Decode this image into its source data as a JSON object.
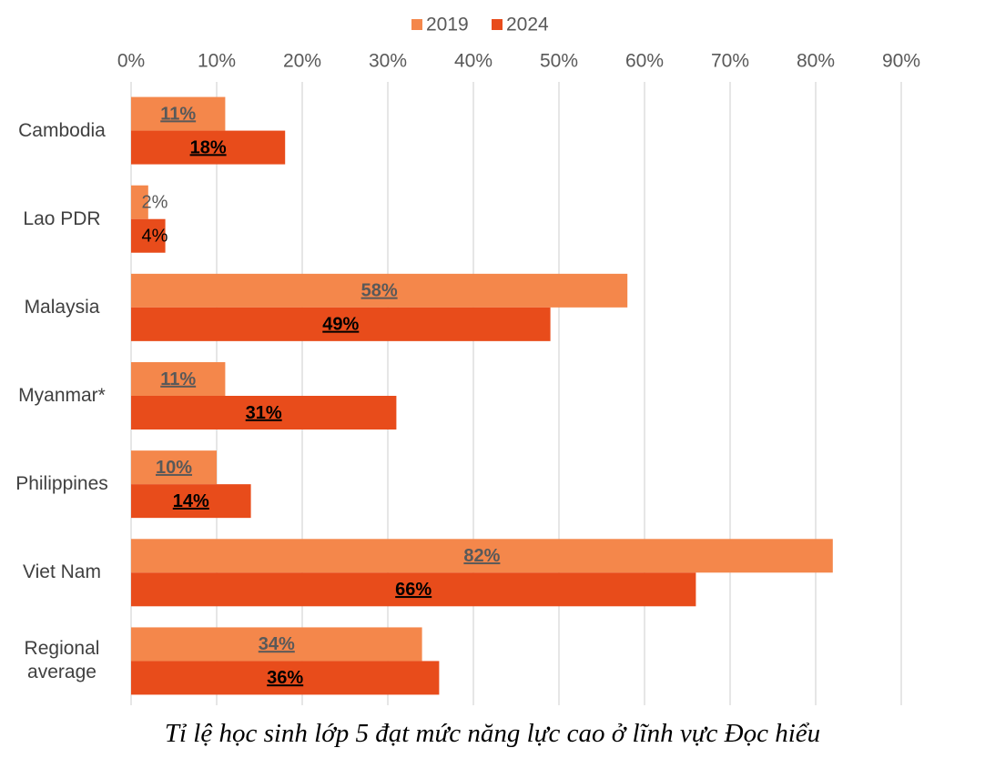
{
  "chart_data": {
    "type": "hbar",
    "categories": [
      "Cambodia",
      "Lao PDR",
      "Malaysia",
      "Myanmar*",
      "Philippines",
      "Viet Nam",
      "Regional average"
    ],
    "series": [
      {
        "name": "2019",
        "color": "#f4874b",
        "values": [
          11,
          2,
          58,
          11,
          10,
          82,
          34
        ],
        "value_labels": [
          "11%",
          "2%",
          "58%",
          "11%",
          "10%",
          "82%",
          "34%"
        ]
      },
      {
        "name": "2024",
        "color": "#e84c1b",
        "values": [
          18,
          4,
          49,
          31,
          14,
          66,
          36
        ],
        "value_labels": [
          "18%",
          "4%",
          "49%",
          "31%",
          "14%",
          "66%",
          "36%"
        ]
      }
    ],
    "xlim": [
      0,
      90
    ],
    "xticks": [
      {
        "value": 0,
        "label": "0%"
      },
      {
        "value": 10,
        "label": "10%"
      },
      {
        "value": 20,
        "label": "20%"
      },
      {
        "value": 30,
        "label": "30%"
      },
      {
        "value": 40,
        "label": "40%"
      },
      {
        "value": 50,
        "label": "50%"
      },
      {
        "value": 60,
        "label": "60%"
      },
      {
        "value": 70,
        "label": "70%"
      },
      {
        "value": 80,
        "label": "80%"
      },
      {
        "value": 90,
        "label": "90%"
      }
    ],
    "grid": true,
    "legend": "top",
    "caption": "Tỉ lệ học sinh lớp 5 đạt mức năng lực cao ở lĩnh vực Đọc hiểu"
  }
}
